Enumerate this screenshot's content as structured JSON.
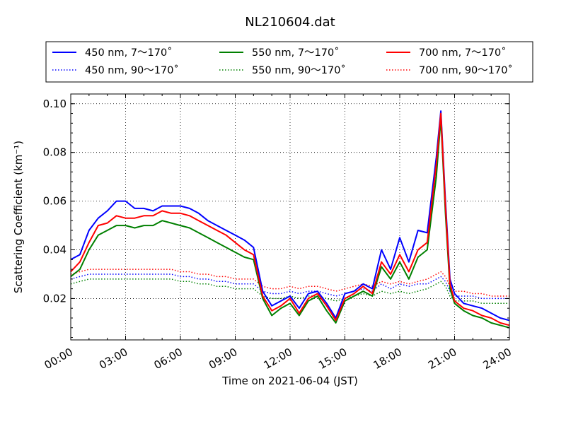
{
  "chart_data": {
    "type": "line",
    "title": "NL210604.dat",
    "xlabel": "Time on 2021-06-04 (JST)",
    "ylabel": "Scattering Coefficient (km⁻¹)",
    "xlim": [
      "00:00",
      "24:00"
    ],
    "ylim": [
      0.003,
      0.104
    ],
    "x_ticks": [
      "00:00",
      "03:00",
      "06:00",
      "09:00",
      "12:00",
      "15:00",
      "18:00",
      "21:00",
      "24:00"
    ],
    "y_ticks": [
      "0.02",
      "0.04",
      "0.06",
      "0.08",
      "0.10"
    ],
    "grid": true,
    "legend_placement": "top, outside plot, 3 columns",
    "x": [
      "00:00",
      "00:30",
      "01:00",
      "01:30",
      "02:00",
      "02:30",
      "03:00",
      "03:30",
      "04:00",
      "04:30",
      "05:00",
      "05:30",
      "06:00",
      "06:30",
      "07:00",
      "07:30",
      "08:00",
      "08:30",
      "09:00",
      "09:30",
      "10:00",
      "10:30",
      "11:00",
      "11:30",
      "12:00",
      "12:30",
      "13:00",
      "13:30",
      "14:00",
      "14:30",
      "15:00",
      "15:30",
      "16:00",
      "16:30",
      "17:00",
      "17:30",
      "18:00",
      "18:30",
      "19:00",
      "19:30",
      "20:00",
      "20:15",
      "20:30",
      "20:45",
      "21:00",
      "21:30",
      "22:00",
      "22:30",
      "23:00",
      "23:30",
      "24:00"
    ],
    "series": [
      {
        "name": "450 nm, 7～170˚",
        "color": "#0000ff",
        "style": "solid",
        "values": [
          0.036,
          0.038,
          0.048,
          0.053,
          0.056,
          0.06,
          0.06,
          0.057,
          0.057,
          0.056,
          0.058,
          0.058,
          0.058,
          0.057,
          0.055,
          0.052,
          0.05,
          0.048,
          0.046,
          0.044,
          0.041,
          0.023,
          0.017,
          0.019,
          0.021,
          0.016,
          0.022,
          0.023,
          0.018,
          0.012,
          0.022,
          0.023,
          0.026,
          0.024,
          0.04,
          0.032,
          0.045,
          0.035,
          0.048,
          0.047,
          0.078,
          0.097,
          0.06,
          0.028,
          0.022,
          0.018,
          0.017,
          0.016,
          0.014,
          0.012,
          0.011
        ]
      },
      {
        "name": "550 nm, 7～170˚",
        "color": "#008000",
        "style": "solid",
        "values": [
          0.029,
          0.032,
          0.04,
          0.046,
          0.048,
          0.05,
          0.05,
          0.049,
          0.05,
          0.05,
          0.052,
          0.051,
          0.05,
          0.049,
          0.047,
          0.045,
          0.043,
          0.041,
          0.039,
          0.037,
          0.036,
          0.02,
          0.013,
          0.016,
          0.018,
          0.013,
          0.019,
          0.021,
          0.015,
          0.01,
          0.019,
          0.021,
          0.023,
          0.021,
          0.033,
          0.028,
          0.035,
          0.028,
          0.037,
          0.04,
          0.07,
          0.094,
          0.055,
          0.024,
          0.018,
          0.015,
          0.013,
          0.012,
          0.01,
          0.009,
          0.008
        ]
      },
      {
        "name": "700 nm, 7～170˚",
        "color": "#ff0000",
        "style": "solid",
        "values": [
          0.031,
          0.035,
          0.043,
          0.05,
          0.051,
          0.054,
          0.053,
          0.053,
          0.054,
          0.054,
          0.056,
          0.055,
          0.055,
          0.054,
          0.052,
          0.05,
          0.048,
          0.046,
          0.043,
          0.04,
          0.038,
          0.021,
          0.015,
          0.017,
          0.02,
          0.014,
          0.02,
          0.022,
          0.017,
          0.011,
          0.02,
          0.022,
          0.025,
          0.022,
          0.035,
          0.03,
          0.038,
          0.031,
          0.04,
          0.043,
          0.075,
          0.096,
          0.058,
          0.026,
          0.019,
          0.016,
          0.015,
          0.013,
          0.012,
          0.01,
          0.009
        ]
      },
      {
        "name": "450 nm, 90～170˚",
        "color": "#0000ff",
        "style": "dotted",
        "values": [
          0.028,
          0.029,
          0.03,
          0.03,
          0.03,
          0.03,
          0.03,
          0.03,
          0.03,
          0.03,
          0.03,
          0.03,
          0.029,
          0.029,
          0.028,
          0.028,
          0.027,
          0.027,
          0.026,
          0.026,
          0.026,
          0.023,
          0.022,
          0.022,
          0.023,
          0.022,
          0.023,
          0.023,
          0.022,
          0.021,
          0.022,
          0.023,
          0.024,
          0.023,
          0.026,
          0.024,
          0.026,
          0.025,
          0.026,
          0.026,
          0.028,
          0.029,
          0.027,
          0.023,
          0.021,
          0.021,
          0.021,
          0.02,
          0.02,
          0.02,
          0.02
        ]
      },
      {
        "name": "550 nm, 90～170˚",
        "color": "#008000",
        "style": "dotted",
        "values": [
          0.026,
          0.027,
          0.028,
          0.028,
          0.028,
          0.028,
          0.028,
          0.028,
          0.028,
          0.028,
          0.028,
          0.028,
          0.027,
          0.027,
          0.026,
          0.026,
          0.025,
          0.025,
          0.024,
          0.024,
          0.024,
          0.021,
          0.02,
          0.02,
          0.021,
          0.02,
          0.021,
          0.021,
          0.02,
          0.019,
          0.02,
          0.021,
          0.022,
          0.021,
          0.023,
          0.022,
          0.023,
          0.022,
          0.023,
          0.024,
          0.026,
          0.027,
          0.025,
          0.021,
          0.019,
          0.019,
          0.019,
          0.018,
          0.018,
          0.018,
          0.018
        ]
      },
      {
        "name": "700 nm, 90～170˚",
        "color": "#ff0000",
        "style": "dotted",
        "values": [
          0.03,
          0.031,
          0.032,
          0.032,
          0.032,
          0.032,
          0.032,
          0.032,
          0.032,
          0.032,
          0.032,
          0.032,
          0.031,
          0.031,
          0.03,
          0.03,
          0.029,
          0.029,
          0.028,
          0.028,
          0.028,
          0.025,
          0.024,
          0.024,
          0.025,
          0.024,
          0.025,
          0.025,
          0.024,
          0.023,
          0.024,
          0.025,
          0.026,
          0.025,
          0.027,
          0.026,
          0.027,
          0.026,
          0.027,
          0.028,
          0.03,
          0.031,
          0.029,
          0.025,
          0.023,
          0.023,
          0.022,
          0.022,
          0.021,
          0.021,
          0.021
        ]
      }
    ]
  }
}
